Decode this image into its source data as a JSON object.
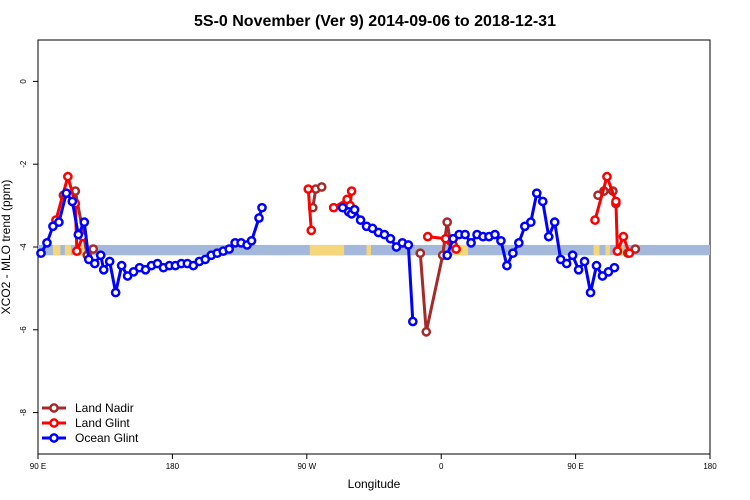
{
  "chart_data": {
    "type": "line",
    "title": "5S-0 November (Ver 9)   2014-09-06 to 2018-12-31",
    "xlabel": "Longitude",
    "ylabel": "XCO2 - MLO trend (ppm)",
    "xlim": [
      90,
      450
    ],
    "ylim": [
      -9,
      1
    ],
    "x_ticks": [
      {
        "value": 90,
        "label": "90 E"
      },
      {
        "value": 180,
        "label": "180"
      },
      {
        "value": 270,
        "label": "90 W"
      },
      {
        "value": 360,
        "label": "0"
      },
      {
        "value": 450,
        "label": "90 E"
      },
      {
        "value": 540,
        "label": "180"
      }
    ],
    "y_ticks": [
      {
        "value": 0,
        "label": "0"
      },
      {
        "value": -2,
        "label": "-2"
      },
      {
        "value": -4,
        "label": "-4"
      },
      {
        "value": -6,
        "label": "-6"
      },
      {
        "value": -8,
        "label": "-8"
      }
    ],
    "grid": false,
    "legend_position": "bottom-left",
    "background_band": {
      "y_range": [
        -4.2,
        -3.95
      ],
      "ocean_color": "#a3b8da",
      "land_color": "#f5d67a",
      "land_x_ranges": [
        [
          100,
          105
        ],
        [
          108,
          112
        ],
        [
          118,
          122
        ],
        [
          272,
          295
        ],
        [
          310,
          313
        ],
        [
          368,
          378
        ],
        [
          462,
          466
        ],
        [
          470,
          473
        ],
        [
          478,
          482
        ]
      ]
    },
    "series": [
      {
        "name": "Land Nadir",
        "color": "#a52a2a",
        "points": [
          [
            107,
            -2.75
          ],
          [
            115,
            -2.65
          ],
          [
            123,
            -4.2
          ],
          [
            127,
            -4.05
          ],
          [
            274,
            -3.05
          ],
          [
            276,
            -2.6
          ],
          [
            280,
            -2.55
          ],
          [
            346,
            -4.15
          ],
          [
            350,
            -6.05
          ],
          [
            361,
            -4.2
          ],
          [
            364,
            -3.4
          ],
          [
            366,
            -3.85
          ],
          [
            465,
            -2.75
          ],
          [
            469,
            -2.65
          ],
          [
            475,
            -2.65
          ],
          [
            477,
            -2.95
          ],
          [
            490,
            -4.05
          ],
          [
            485,
            -4.15
          ]
        ]
      },
      {
        "name": "Land Glint",
        "color": "#ff0000",
        "points": [
          [
            102,
            -3.35
          ],
          [
            110,
            -2.3
          ],
          [
            115,
            -2.95
          ],
          [
            116,
            -4.1
          ],
          [
            120,
            -3.75
          ],
          [
            271,
            -2.6
          ],
          [
            273,
            -3.6
          ],
          [
            288,
            -3.05
          ],
          [
            297,
            -2.85
          ],
          [
            299,
            -3.0
          ],
          [
            300,
            -2.65
          ],
          [
            351,
            -3.75
          ],
          [
            363,
            -3.8
          ],
          [
            368,
            -3.95
          ],
          [
            370,
            -4.05
          ],
          [
            463,
            -3.35
          ],
          [
            471,
            -2.3
          ],
          [
            477,
            -2.9
          ],
          [
            478,
            -4.1
          ],
          [
            482,
            -3.75
          ],
          [
            486,
            -4.15
          ]
        ]
      },
      {
        "name": "Ocean Glint",
        "color": "#0000ff",
        "points": [
          [
            92,
            -4.15
          ],
          [
            96,
            -3.9
          ],
          [
            100,
            -3.5
          ],
          [
            104,
            -3.4
          ],
          [
            109,
            -2.7
          ],
          [
            113,
            -2.9
          ],
          [
            117,
            -3.7
          ],
          [
            121,
            -3.4
          ],
          [
            124,
            -4.3
          ],
          [
            128,
            -4.4
          ],
          [
            132,
            -4.2
          ],
          [
            134,
            -4.55
          ],
          [
            138,
            -4.35
          ],
          [
            142,
            -5.1
          ],
          [
            146,
            -4.45
          ],
          [
            150,
            -4.7
          ],
          [
            154,
            -4.6
          ],
          [
            158,
            -4.5
          ],
          [
            162,
            -4.55
          ],
          [
            166,
            -4.45
          ],
          [
            170,
            -4.4
          ],
          [
            174,
            -4.5
          ],
          [
            178,
            -4.45
          ],
          [
            182,
            -4.45
          ],
          [
            186,
            -4.4
          ],
          [
            190,
            -4.4
          ],
          [
            194,
            -4.45
          ],
          [
            198,
            -4.35
          ],
          [
            202,
            -4.3
          ],
          [
            206,
            -4.2
          ],
          [
            210,
            -4.15
          ],
          [
            214,
            -4.1
          ],
          [
            218,
            -4.05
          ],
          [
            222,
            -3.9
          ],
          [
            226,
            -3.9
          ],
          [
            230,
            -3.95
          ],
          [
            233,
            -3.85
          ],
          [
            238,
            -3.3
          ],
          [
            240,
            -3.05
          ],
          [
            294,
            -3.05
          ],
          [
            298,
            -3.15
          ],
          [
            300,
            -3.2
          ],
          [
            302,
            -3.1
          ],
          [
            306,
            -3.35
          ],
          [
            310,
            -3.5
          ],
          [
            314,
            -3.55
          ],
          [
            318,
            -3.65
          ],
          [
            322,
            -3.7
          ],
          [
            326,
            -3.8
          ],
          [
            330,
            -4.0
          ],
          [
            334,
            -3.9
          ],
          [
            338,
            -3.95
          ],
          [
            341,
            -5.8
          ],
          [
            364,
            -4.2
          ],
          [
            368,
            -3.8
          ],
          [
            372,
            -3.7
          ],
          [
            376,
            -3.7
          ],
          [
            380,
            -3.9
          ],
          [
            384,
            -3.7
          ],
          [
            388,
            -3.75
          ],
          [
            392,
            -3.75
          ],
          [
            396,
            -3.7
          ],
          [
            400,
            -3.85
          ],
          [
            404,
            -4.45
          ],
          [
            408,
            -4.15
          ],
          [
            412,
            -3.9
          ],
          [
            416,
            -3.5
          ],
          [
            420,
            -3.4
          ],
          [
            424,
            -2.7
          ],
          [
            428,
            -2.9
          ],
          [
            432,
            -3.75
          ],
          [
            436,
            -3.4
          ],
          [
            440,
            -4.3
          ],
          [
            444,
            -4.4
          ],
          [
            448,
            -4.2
          ],
          [
            452,
            -4.55
          ],
          [
            456,
            -4.35
          ],
          [
            460,
            -5.1
          ],
          [
            464,
            -4.45
          ],
          [
            468,
            -4.7
          ],
          [
            472,
            -4.6
          ],
          [
            476,
            -4.5
          ]
        ]
      }
    ]
  }
}
